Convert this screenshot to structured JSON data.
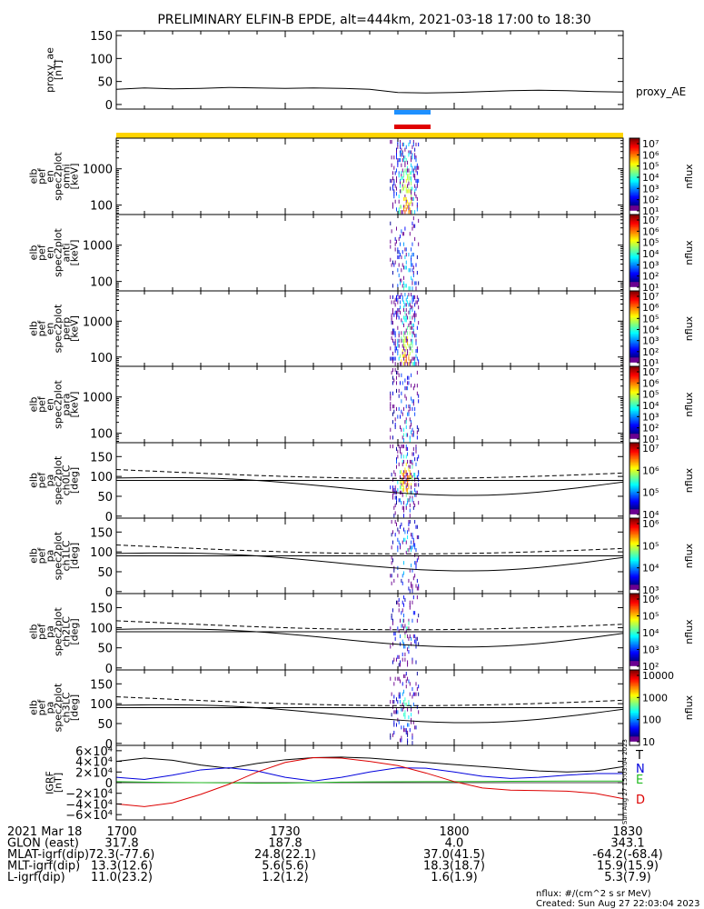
{
  "title": "PRELIMINARY ELFIN-B EPDE, alt=444km, 2021-03-18 17:00 to 18:30",
  "colors": {
    "yellow_bar": "#ffd400",
    "blue_bar": "#1e90ff",
    "red_bar": "#e00000",
    "gsm_T": "#000000",
    "gsm_N": "#0000dd",
    "gsm_E": "#22bb22",
    "gsm_D": "#dd0000"
  },
  "chart_data": [
    {
      "type": "line",
      "id": "proxy_ae",
      "ylabel": [
        "proxy_ae",
        "[nT]"
      ],
      "ylim": [
        -10,
        160
      ],
      "yticks": [
        0,
        50,
        100,
        150
      ],
      "series_label": "proxy_AE",
      "x_minutes": [
        0,
        5,
        10,
        15,
        20,
        25,
        30,
        35,
        40,
        45,
        50,
        55,
        60,
        65,
        70,
        75,
        80,
        85,
        90
      ],
      "values": [
        33,
        36,
        34,
        35,
        37,
        36,
        35,
        36,
        35,
        33,
        26,
        25,
        26,
        28,
        30,
        31,
        30,
        28,
        27
      ]
    },
    {
      "type": "heatmap",
      "id": "omni",
      "ylabel": [
        "elb",
        "pef",
        "en",
        "spec2plot",
        "omni",
        "[keV]"
      ],
      "yscale": "log",
      "ylim": [
        55,
        7000
      ],
      "yticks": [
        100,
        1000
      ],
      "colorbar": {
        "label": "nflux",
        "ticks": [
          "10⁷",
          "10⁶",
          "10⁵",
          "10⁴",
          "10³",
          "10²",
          "10¹"
        ]
      }
    },
    {
      "type": "heatmap",
      "id": "anti",
      "ylabel": [
        "elb",
        "pef",
        "en",
        "spec2plot",
        "anti",
        "[keV]"
      ],
      "yscale": "log",
      "ylim": [
        55,
        7000
      ],
      "yticks": [
        100,
        1000
      ],
      "colorbar": {
        "label": "nflux",
        "ticks": [
          "10⁷",
          "10⁶",
          "10⁵",
          "10⁴",
          "10³",
          "10²",
          "10¹"
        ]
      }
    },
    {
      "type": "heatmap",
      "id": "perp",
      "ylabel": [
        "elb",
        "pef",
        "en",
        "spec2plot",
        "perp",
        "[keV]"
      ],
      "yscale": "log",
      "ylim": [
        55,
        7000
      ],
      "yticks": [
        100,
        1000
      ],
      "colorbar": {
        "label": "nflux",
        "ticks": [
          "10⁷",
          "10⁶",
          "10⁵",
          "10⁴",
          "10³",
          "10²",
          "10¹"
        ]
      }
    },
    {
      "type": "heatmap",
      "id": "para",
      "ylabel": [
        "elb",
        "pef",
        "en",
        "spec2plot",
        "para",
        "[keV]"
      ],
      "yscale": "log",
      "ylim": [
        55,
        7000
      ],
      "yticks": [
        100,
        1000
      ],
      "colorbar": {
        "label": "nflux",
        "ticks": [
          "10⁷",
          "10⁶",
          "10⁵",
          "10⁴",
          "10³",
          "10²",
          "10¹"
        ]
      }
    },
    {
      "type": "heatmap",
      "id": "ch0LC",
      "ylabel": [
        "elb",
        "pef",
        "pa",
        "spec2plot",
        "ch0LC",
        "[deg]"
      ],
      "ylim": [
        -5,
        185
      ],
      "yticks": [
        0,
        50,
        100,
        150
      ],
      "colorbar": {
        "label": "nflux",
        "ticks": [
          "10⁷",
          "10⁶",
          "10⁵",
          "10⁴"
        ]
      }
    },
    {
      "type": "heatmap",
      "id": "ch1LC",
      "ylabel": [
        "elb",
        "pef",
        "pa",
        "spec2plot",
        "ch1LC",
        "[deg]"
      ],
      "ylim": [
        -5,
        185
      ],
      "yticks": [
        0,
        50,
        100,
        150
      ],
      "colorbar": {
        "label": "nflux",
        "ticks": [
          "10⁶",
          "10⁵",
          "10⁴",
          "10³"
        ]
      }
    },
    {
      "type": "heatmap",
      "id": "ch2LC",
      "ylabel": [
        "elb",
        "pef",
        "pa",
        "spec2plot",
        "ch2LC",
        "[deg]"
      ],
      "ylim": [
        -5,
        185
      ],
      "yticks": [
        0,
        50,
        100,
        150
      ],
      "colorbar": {
        "label": "nflux",
        "ticks": [
          "10⁶",
          "10⁵",
          "10⁴",
          "10³",
          "10²"
        ]
      }
    },
    {
      "type": "heatmap",
      "id": "ch3LC",
      "ylabel": [
        "elb",
        "pef",
        "pa",
        "spec2plot",
        "ch3LC",
        "[deg]"
      ],
      "ylim": [
        -5,
        185
      ],
      "yticks": [
        0,
        50,
        100,
        150
      ],
      "colorbar": {
        "label": "nflux",
        "ticks": [
          "10000",
          "1000",
          "100",
          "10"
        ]
      }
    },
    {
      "type": "line",
      "id": "igrf",
      "ylabel": [
        "IGRF",
        "[nT]"
      ],
      "ylim": [
        -70000,
        70000
      ],
      "ytick_labels": [
        "6×10⁴",
        "4×10⁴",
        "2×10⁴",
        "0",
        "−2×10⁴",
        "−4×10⁴",
        "−6×10⁴"
      ],
      "yticks": [
        60000,
        40000,
        20000,
        0,
        -20000,
        -40000,
        -60000
      ],
      "x_minutes": [
        0,
        5,
        10,
        15,
        20,
        25,
        30,
        35,
        40,
        45,
        50,
        55,
        60,
        65,
        70,
        75,
        80,
        85,
        90
      ],
      "series": [
        {
          "name": "T",
          "color": "#000000",
          "values": [
            40000,
            46000,
            42000,
            33000,
            27000,
            36000,
            43000,
            47000,
            48000,
            46000,
            42000,
            38000,
            34000,
            30000,
            26000,
            22000,
            20000,
            22000,
            30000
          ]
        },
        {
          "name": "N",
          "color": "#0000dd",
          "values": [
            10000,
            6000,
            14000,
            24000,
            28000,
            22000,
            10000,
            3000,
            10000,
            20000,
            28000,
            27000,
            20000,
            12000,
            8000,
            10000,
            14000,
            17000,
            17000
          ]
        },
        {
          "name": "E",
          "color": "#22bb22",
          "values": [
            2000,
            1000,
            500,
            0,
            -500,
            -1000,
            -800,
            0,
            1000,
            1500,
            1800,
            2000,
            2000,
            2200,
            2500,
            2800,
            3000,
            3000,
            3000
          ]
        },
        {
          "name": "D",
          "color": "#dd0000",
          "values": [
            -40000,
            -45000,
            -38000,
            -22000,
            -3000,
            20000,
            38000,
            47000,
            46000,
            40000,
            32000,
            18000,
            2000,
            -10000,
            -14000,
            -15000,
            -16000,
            -20000,
            -30000
          ]
        }
      ],
      "side_note": "Sun Aug 27 15:03:04 2023"
    }
  ],
  "footer": {
    "rows": [
      {
        "label": "2021 Mar 18",
        "values": [
          "1700",
          "1730",
          "1800",
          "1830"
        ]
      },
      {
        "label": "GLON (east)",
        "values": [
          "317.8",
          "187.8",
          "4.0",
          "343.1"
        ]
      },
      {
        "label": "MLAT-igrf(dip)",
        "values": [
          "72.3(-77.6)",
          "24.8(22.1)",
          "37.0(41.5)",
          "-64.2(-68.4)"
        ]
      },
      {
        "label": "MLT-igrf(dip)",
        "values": [
          "13.3(12.6)",
          "5.6(5.6)",
          "18.3(18.7)",
          "15.9(15.9)"
        ]
      },
      {
        "label": "L-igrf(dip)",
        "values": [
          "11.0(23.2)",
          "1.2(1.2)",
          "1.6(1.9)",
          "5.3(7.9)"
        ]
      }
    ],
    "note_units": "nflux: #/(cm^2 s sr MeV)",
    "note_created": "Created: Sun Aug 27 22:03:04 2023"
  }
}
